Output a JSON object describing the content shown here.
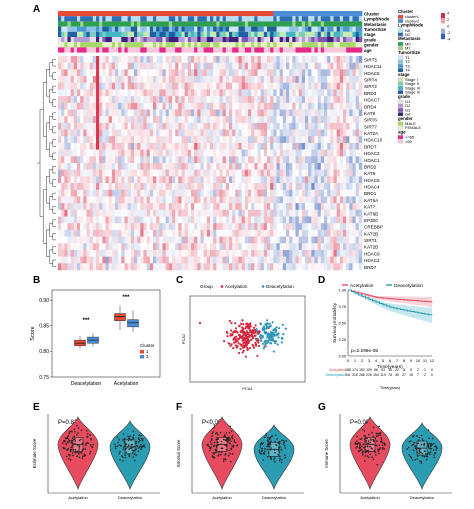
{
  "panels": {
    "A": "A",
    "B": "B",
    "C": "C",
    "D": "D",
    "E": "E",
    "F": "F",
    "G": "G"
  },
  "heatmap": {
    "annotation_rows": [
      "Cluster",
      "LymphNode",
      "Metastasis",
      "TumorSize",
      "stage",
      "grade",
      "gender",
      "age"
    ],
    "genes": [
      "SIRT5",
      "HDAC11",
      "HDAC6",
      "SIRT4",
      "SIRT2",
      "BRD3",
      "HDAC7",
      "BRD4",
      "KAT8",
      "SIRT6",
      "SIRT7",
      "KAT2A",
      "HDAC10",
      "BRDT",
      "HDAC3",
      "HDAC1",
      "BRD2",
      "KAT6",
      "HDAC5",
      "HDAC4",
      "BRD1",
      "KAT6A",
      "KAT7",
      "KAT6B",
      "EP300",
      "CREBBP",
      "KAT2B",
      "SIRT1",
      "KAT2B",
      "HDAC9",
      "HDAC2",
      "BRD7"
    ],
    "colors": {
      "high": "#d7304a",
      "mid": "#ffffff",
      "low": "#3a5fb8"
    }
  },
  "legend": {
    "groups": [
      {
        "title": "Cluster",
        "items": [
          {
            "label": "cluster1",
            "color": "#e64b35"
          },
          {
            "label": "cluster2",
            "color": "#4a8cd6"
          }
        ]
      },
      {
        "title": "LymphNode",
        "items": [
          {
            "label": "N0",
            "color": "#b8dcf2"
          },
          {
            "label": "N1",
            "color": "#2f6fb5"
          }
        ]
      },
      {
        "title": "Metastasis",
        "items": [
          {
            "label": "M0",
            "color": "#2e9e4f"
          },
          {
            "label": "M1",
            "color": "#9fd38b"
          }
        ]
      },
      {
        "title": "TumorSize",
        "items": [
          {
            "label": "T1",
            "color": "#cfe8f5"
          },
          {
            "label": "T2",
            "color": "#8cc3e6"
          },
          {
            "label": "T3",
            "color": "#4a97cf"
          },
          {
            "label": "T4",
            "color": "#1e5f9a"
          }
        ]
      },
      {
        "title": "stage",
        "items": [
          {
            "label": "Stage I",
            "color": "#c7e9b4"
          },
          {
            "label": "Stage II",
            "color": "#7fcdbb"
          },
          {
            "label": "Stage III",
            "color": "#41b6c4"
          },
          {
            "label": "Stage IV",
            "color": "#225ea8"
          }
        ]
      },
      {
        "title": "grade",
        "items": [
          {
            "label": "G1",
            "color": "#e6dcf0"
          },
          {
            "label": "G2",
            "color": "#b79ad4"
          },
          {
            "label": "G3",
            "color": "#7e57b5"
          },
          {
            "label": "G4",
            "color": "#3f1f7a"
          }
        ]
      },
      {
        "title": "gender",
        "items": [
          {
            "label": "MALE",
            "color": "#a6d96a"
          },
          {
            "label": "FEMALE",
            "color": "#eaf5c8"
          }
        ]
      },
      {
        "title": "age",
        "items": [
          {
            "label": "<=65",
            "color": "#e7298a"
          },
          {
            "label": ">65",
            "color": "#f7c6dc"
          }
        ]
      }
    ],
    "scale_ticks": [
      "4",
      "2",
      "0",
      "-2",
      "-4"
    ]
  },
  "panelB": {
    "ylabel": "Score",
    "yticks": [
      "0.90",
      "0.85",
      "0.80",
      "0.75"
    ],
    "groups": [
      "Deacetylation",
      "Acetylation"
    ],
    "significance": [
      "***",
      "***"
    ],
    "legend_title": "Cluster",
    "legend_items": [
      {
        "label": "1",
        "color": "#e64b35"
      },
      {
        "label": "2",
        "color": "#4a8cd6"
      }
    ]
  },
  "panelC": {
    "legend_title": "Group",
    "legend_items": [
      {
        "label": "Acetylation",
        "color": "#d7253b"
      },
      {
        "label": "Deacetylation",
        "color": "#2f97b8"
      }
    ],
    "xlabel": "PCA1",
    "ylabel": "PCA2"
  },
  "panelD": {
    "legend_items": [
      {
        "label": "Acetylation",
        "color": "#e64b60"
      },
      {
        "label": "Deacetylation",
        "color": "#2a9db3"
      }
    ],
    "ylabel": "Survival probability",
    "xlabel": "Time(years)",
    "yticks": [
      "1.00",
      "0.75",
      "0.50",
      "0.25",
      "0.00"
    ],
    "xticks": [
      "0",
      "1",
      "2",
      "3",
      "4",
      "5",
      "6",
      "7",
      "8",
      "9",
      "10",
      "11",
      "12"
    ],
    "pvalue": "p=2.296e-05",
    "risk_title": "Time(years)",
    "risk_rows": [
      {
        "label": "Acetylation",
        "values": [
          "188",
          "174",
          "152",
          "109",
          "86",
          "53",
          "35",
          "22",
          "11",
          "5",
          "2",
          "1",
          "0"
        ]
      },
      {
        "label": "Deacetylation",
        "values": [
          "341",
          "315",
          "286",
          "226",
          "154",
          "110",
          "78",
          "49",
          "27",
          "15",
          "7",
          "2",
          "0"
        ]
      }
    ]
  },
  "panelE": {
    "ylabel": "Estimate Score",
    "pvalue": "P=0.81",
    "groups": [
      "Acetylation",
      "Deacetylation"
    ]
  },
  "panelF": {
    "ylabel": "Stromal Score",
    "pvalue": "P<0.001",
    "groups": [
      "Acetylation",
      "Deacetylation"
    ]
  },
  "panelG": {
    "ylabel": "Immune Score",
    "pvalue": "P=0.003",
    "groups": [
      "Acetylation",
      "Deacetylation"
    ]
  }
}
